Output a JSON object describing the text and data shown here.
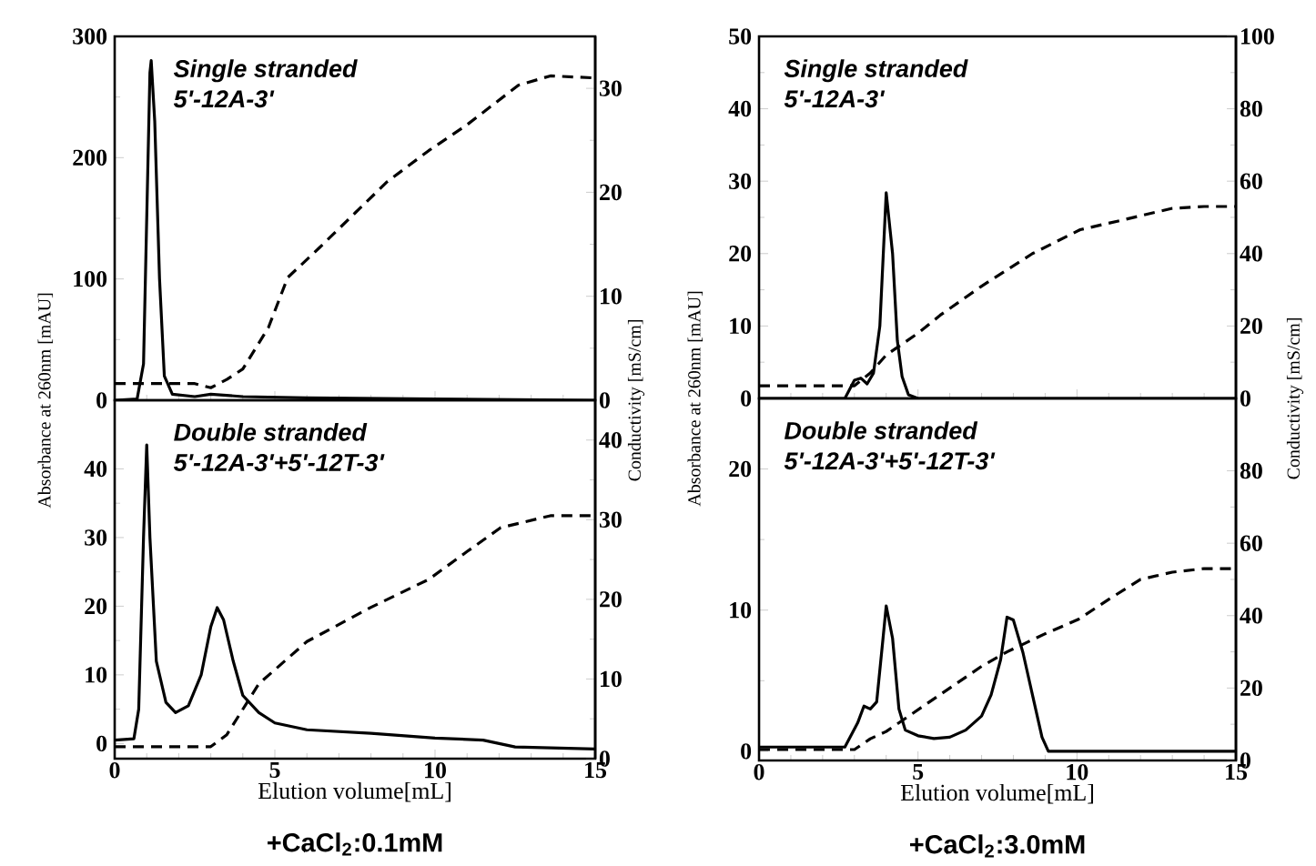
{
  "chart_data": [
    {
      "type": "line",
      "xlim": [
        0,
        15
      ],
      "xticks": [
        0,
        5,
        10,
        15
      ],
      "ylim": [
        0,
        300
      ],
      "yticks": [
        0,
        100,
        200,
        300
      ],
      "y2lim": [
        0,
        35
      ],
      "y2ticks": [
        0,
        10,
        20,
        30
      ],
      "ylabel": "Absorbance at 260nm [mAU]",
      "y2label": "Conductivity [mS/cm]",
      "tick_labels": "y",
      "annotations": [
        "Single stranded",
        "5'-12A-3'"
      ],
      "series": [
        {
          "color": "#000000",
          "line_style": "solid",
          "x": [
            0,
            0.7,
            0.9,
            1.0,
            1.1,
            1.14,
            1.25,
            1.4,
            1.55,
            1.8,
            2.5,
            3,
            4,
            6,
            10,
            15
          ],
          "values": [
            0,
            1,
            30,
            150,
            270,
            280,
            230,
            100,
            20,
            5,
            3,
            5,
            3,
            2,
            1,
            0
          ]
        },
        {
          "color": "#000000",
          "line_style": "dashed",
          "axis": "y2",
          "x": [
            0,
            2.5,
            3.0,
            3.5,
            4.0,
            4.8,
            5.4,
            6.4,
            7.5,
            8.5,
            9.8,
            11,
            12.6,
            13.6,
            15
          ],
          "values": [
            1.6,
            1.6,
            1.2,
            2,
            3,
            7,
            11.8,
            14.7,
            18,
            21,
            24,
            26.5,
            30.3,
            31.2,
            31
          ]
        }
      ]
    },
    {
      "type": "line",
      "xlim": [
        0,
        15
      ],
      "xticks": [
        0,
        5,
        10,
        15
      ],
      "ylim": [
        -2.2,
        50
      ],
      "yticks": [
        0,
        10,
        20,
        30,
        40
      ],
      "y2lim": [
        0,
        45
      ],
      "y2ticks": [
        0,
        10,
        20,
        30,
        40
      ],
      "xlabel": "Elution volume[mL]",
      "title": "+CaCl$_{2}$:0.1mM",
      "annotations": [
        "Double stranded",
        "5'-12A-3'+5'-12T-3'"
      ],
      "series": [
        {
          "color": "#000000",
          "line_style": "solid",
          "x": [
            0,
            0.6,
            0.75,
            0.9,
            1.0,
            1.1,
            1.3,
            1.6,
            1.9,
            2.3,
            2.7,
            3.0,
            3.2,
            3.4,
            3.7,
            4.0,
            4.5,
            5,
            6,
            8,
            10,
            11.5,
            12.5,
            15
          ],
          "values": [
            0.5,
            0.7,
            5,
            30,
            43.5,
            30,
            12,
            6,
            4.5,
            5.5,
            10,
            17,
            19.8,
            18,
            12,
            7,
            4.5,
            3,
            2,
            1.5,
            0.8,
            0.5,
            -0.5,
            -0.8
          ]
        },
        {
          "color": "#000000",
          "line_style": "dashed",
          "axis": "y2",
          "x": [
            0,
            3.0,
            3.5,
            4.5,
            6,
            8,
            9.8,
            11,
            12.05,
            13.6,
            15
          ],
          "values": [
            1.5,
            1.5,
            3,
            9.4,
            14.7,
            19,
            22.5,
            26,
            29,
            30.5,
            30.5
          ]
        }
      ]
    },
    {
      "type": "line",
      "xlim": [
        0,
        15
      ],
      "xticks": [
        0,
        5,
        10,
        15
      ],
      "ylim": [
        0,
        50
      ],
      "yticks": [
        0,
        10,
        20,
        30,
        40,
        50
      ],
      "y2lim": [
        0,
        100
      ],
      "y2ticks": [
        0,
        20,
        40,
        60,
        80,
        100
      ],
      "ylabel": "Absorbance at 260nm [mAU]",
      "y2label": "Conductivity [mS/cm]",
      "tick_labels": "y",
      "annotations": [
        "Single stranded",
        "5'-12A-3'"
      ],
      "series": [
        {
          "color": "#000000",
          "line_style": "solid",
          "x": [
            0,
            2.7,
            3.0,
            3.2,
            3.4,
            3.6,
            3.8,
            4.0,
            4.2,
            4.35,
            4.5,
            4.7,
            5,
            15
          ],
          "values": [
            0,
            0,
            2.5,
            2.8,
            2,
            3.5,
            10,
            28.4,
            20,
            8,
            3,
            0.5,
            0,
            0
          ]
        },
        {
          "color": "#000000",
          "line_style": "dashed",
          "axis": "y2",
          "x": [
            0,
            3.0,
            3.5,
            4.0,
            5,
            5.7,
            7,
            8.6,
            10.1,
            11.3,
            13,
            14,
            15
          ],
          "values": [
            3.5,
            3.5,
            7,
            12,
            18,
            23,
            31,
            40,
            46.6,
            49,
            52.5,
            53,
            53
          ]
        }
      ]
    },
    {
      "type": "line",
      "xlim": [
        0,
        15
      ],
      "xticks": [
        0,
        5,
        10,
        15
      ],
      "ylim": [
        -0.65,
        25
      ],
      "yticks": [
        0,
        10,
        20
      ],
      "y2lim": [
        0,
        100
      ],
      "y2ticks": [
        0,
        20,
        40,
        60,
        80
      ],
      "xlabel": "Elution volume[mL]",
      "title": "+CaCl$_{2}$:3.0mM",
      "annotations": [
        "Double stranded",
        "5'-12A-3'+5'-12T-3'"
      ],
      "series": [
        {
          "color": "#000000",
          "line_style": "solid",
          "x": [
            0,
            2.7,
            3.1,
            3.3,
            3.5,
            3.7,
            3.9,
            4.0,
            4.2,
            4.4,
            4.6,
            5,
            5.5,
            6,
            6.5,
            7,
            7.3,
            7.6,
            7.8,
            8.0,
            8.3,
            8.6,
            8.9,
            9.1,
            15
          ],
          "values": [
            0.3,
            0.3,
            2,
            3.2,
            3.0,
            3.5,
            8,
            10.3,
            8,
            3,
            1.5,
            1.1,
            0.9,
            1,
            1.5,
            2.5,
            4,
            6.5,
            9.5,
            9.3,
            7,
            4,
            1,
            0,
            0
          ]
        },
        {
          "color": "#000000",
          "line_style": "dashed",
          "axis": "y2",
          "x": [
            0,
            3.0,
            3.5,
            4.0,
            4.75,
            6,
            7,
            7.8,
            9,
            10.05,
            11,
            12,
            13,
            14,
            15
          ],
          "values": [
            3,
            3,
            6,
            8,
            12.5,
            20,
            26,
            30,
            35,
            39,
            44.5,
            50,
            52,
            53,
            53
          ]
        }
      ]
    }
  ]
}
